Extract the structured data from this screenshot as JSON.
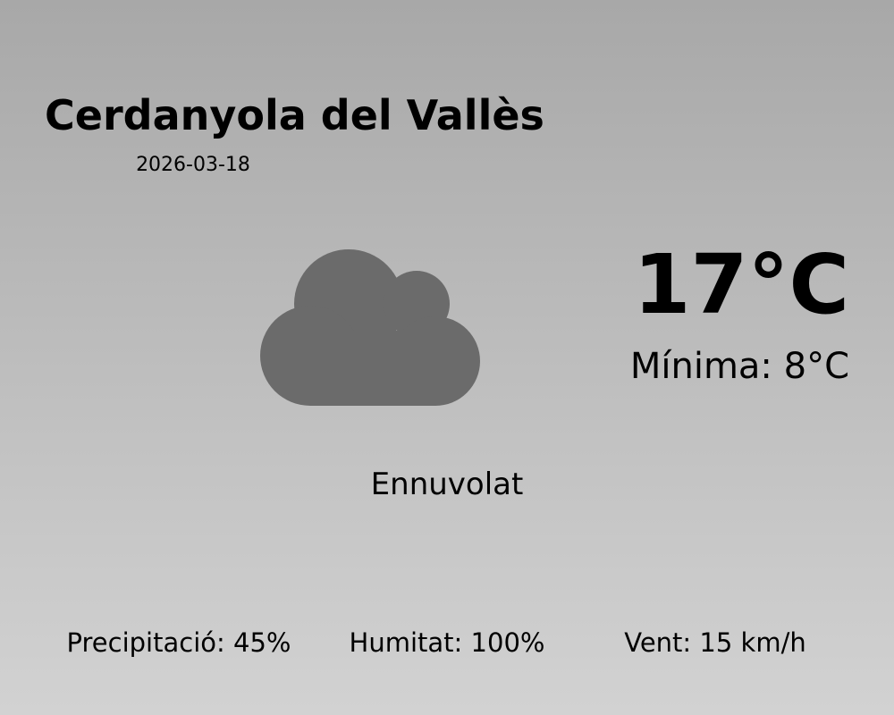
{
  "location": "Cerdanyola del Vallès",
  "date": "2026-03-18",
  "icon": "cloud-icon",
  "colors": {
    "icon": "#6b6b6b",
    "background_top": "#a8a8a8",
    "background_bottom": "#d2d2d2"
  },
  "temperature": "17°C",
  "minimum": "Mínima: 8°C",
  "condition": "Ennuvolat",
  "stats": {
    "precipitation": "Precipitació: 45%",
    "humidity": "Humitat: 100%",
    "wind": "Vent: 15 km/h"
  }
}
